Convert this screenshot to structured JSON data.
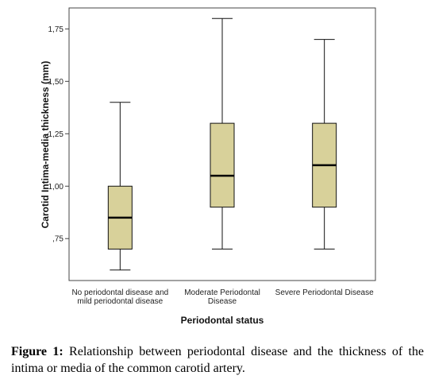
{
  "chart_data": {
    "type": "box",
    "xlabel": "Periodontal status",
    "ylabel": "Carotid Intima-media thickness (mm)",
    "ylim": [
      0.55,
      1.85
    ],
    "yticks": [
      0.75,
      1.0,
      1.25,
      1.5,
      1.75
    ],
    "ytick_labels": [
      ",75",
      "1,00",
      "1,25",
      "1,50",
      "1,75"
    ],
    "categories": [
      [
        "No periodontal disease and",
        "mild periodontal disease"
      ],
      [
        "Moderate Periodontal",
        "Disease"
      ],
      [
        "Severe Periodontal Disease"
      ]
    ],
    "boxes": [
      {
        "min": 0.6,
        "q1": 0.7,
        "median": 0.85,
        "q3": 1.0,
        "max": 1.4
      },
      {
        "min": 0.7,
        "q1": 0.9,
        "median": 1.05,
        "q3": 1.3,
        "max": 1.8
      },
      {
        "min": 0.7,
        "q1": 0.9,
        "median": 1.1,
        "q3": 1.3,
        "max": 1.7
      }
    ],
    "box_color": "#d8d19a",
    "grid": false
  },
  "caption": {
    "label": "Figure 1:",
    "text": "Relationship between periodontal disease and the thickness of the intima or media of the common carotid artery."
  }
}
